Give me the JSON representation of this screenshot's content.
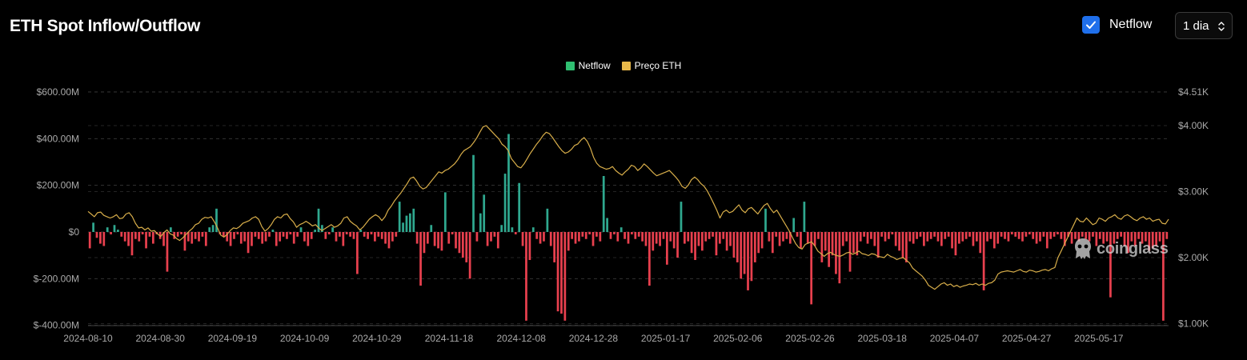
{
  "header": {
    "title": "ETH Spot Inflow/Outflow",
    "toggle_label": "Netflow",
    "toggle_checked": true,
    "interval_value": "1 dia"
  },
  "watermark": {
    "text": "coinglass"
  },
  "colors": {
    "positive": "#2fa88f",
    "negative": "#e8404e",
    "price": "#d8ae4a",
    "checkbox": "#1f6feb",
    "grid": "#333333"
  },
  "icons": {
    "check": "check-icon",
    "select": "chevron-updown-icon",
    "logo": "coinglass-logo-icon"
  },
  "chart_data": {
    "type": "bar",
    "title": "ETH Spot Inflow/Outflow",
    "legend": [
      "Netflow",
      "Preço ETH"
    ],
    "legend_position": "top-center",
    "grid": true,
    "x_tick_labels": [
      "2024-08-10",
      "2024-08-30",
      "2024-09-19",
      "2024-10-09",
      "2024-10-29",
      "2024-11-18",
      "2024-12-08",
      "2024-12-28",
      "2025-01-17",
      "2025-02-06",
      "2025-02-26",
      "2025-03-18",
      "2025-04-07",
      "2025-04-27",
      "2025-05-17"
    ],
    "y_left_tick_labels": [
      "$600.00M",
      "$400.00M",
      "$200.00M",
      "$0",
      "$-200.00M",
      "$-400.00M"
    ],
    "y_left_ticks": [
      600,
      400,
      200,
      0,
      -200,
      -400
    ],
    "y_left_unit": "USD millions",
    "y_left_range": [
      -400,
      600
    ],
    "y_right_tick_labels": [
      "$4.51K",
      "$4.00K",
      "$3.00K",
      "$2.00K",
      "$1.00K"
    ],
    "y_right_ticks": [
      4.51,
      4.0,
      3.0,
      2.0,
      1.0
    ],
    "y_right_unit": "USD thousands",
    "y_right_range": [
      1.0,
      4.51
    ],
    "start_date": "2024-08-10",
    "series": [
      {
        "name": "Netflow",
        "type": "bar",
        "values": [
          -70,
          40,
          -25,
          -50,
          -60,
          20,
          -10,
          30,
          10,
          -20,
          -40,
          -60,
          -100,
          -30,
          -40,
          -10,
          -70,
          -20,
          -50,
          -10,
          -30,
          -60,
          -170,
          20,
          -30,
          -20,
          -10,
          -80,
          -40,
          -50,
          -30,
          -40,
          -20,
          -60,
          20,
          30,
          100,
          -10,
          -20,
          -40,
          -60,
          -30,
          -10,
          -50,
          -40,
          -90,
          -60,
          -20,
          -30,
          -50,
          -40,
          -20,
          10,
          -60,
          -40,
          -20,
          -30,
          -10,
          -50,
          -20,
          20,
          -40,
          -60,
          -30,
          10,
          100,
          30,
          -30,
          -10,
          20,
          -40,
          -20,
          -60,
          -10,
          -20,
          -30,
          -180,
          10,
          -20,
          -30,
          -10,
          -40,
          -20,
          -30,
          -50,
          -70,
          -40,
          -20,
          130,
          40,
          70,
          80,
          100,
          -50,
          -230,
          -90,
          -50,
          30,
          -60,
          -70,
          -80,
          170,
          -50,
          -10,
          -70,
          -90,
          -110,
          -130,
          -200,
          330,
          -40,
          80,
          160,
          -60,
          -40,
          -20,
          -70,
          30,
          250,
          420,
          20,
          -10,
          210,
          -60,
          -380,
          -120,
          20,
          -30,
          -50,
          -40,
          100,
          -60,
          -130,
          -340,
          -350,
          -380,
          -80,
          -30,
          -50,
          -40,
          -20,
          -30,
          -10,
          -60,
          -20,
          -40,
          240,
          60,
          -30,
          -10,
          -40,
          20,
          -30,
          -50,
          -10,
          -30,
          -20,
          -40,
          -60,
          -230,
          -80,
          -50,
          -60,
          -30,
          -140,
          -40,
          -70,
          -110,
          130,
          -50,
          -40,
          -90,
          -120,
          -60,
          -80,
          -40,
          -30,
          -20,
          -100,
          -50,
          -30,
          -80,
          -60,
          -110,
          -130,
          -200,
          -180,
          -250,
          -210,
          -130,
          -90,
          -70,
          100,
          -40,
          -90,
          -20,
          -60,
          -40,
          -30,
          -50,
          60,
          -20,
          -70,
          130,
          -50,
          -310,
          -60,
          -30,
          -130,
          -80,
          -150,
          -100,
          -180,
          -220,
          -60,
          -40,
          -170,
          -90,
          -100,
          -40,
          -20,
          -50,
          -30,
          -60,
          -110,
          -20,
          -40,
          -30,
          -10,
          -60,
          -80,
          -110,
          -130,
          -40,
          -50,
          -30,
          -20,
          -60,
          -40,
          -30,
          -20,
          -40,
          -60,
          -30,
          -20,
          -70,
          -100,
          -50,
          -40,
          -30,
          -20,
          -60,
          -40,
          -90,
          -250,
          -40,
          -30,
          -70,
          -50,
          -20,
          -30,
          -40,
          -10,
          -20,
          -30,
          -40,
          -20,
          -10,
          -30,
          -50,
          -40,
          -20,
          -70,
          -30,
          -20,
          -10,
          -30,
          -60,
          -20,
          -50,
          -30,
          -40,
          -20,
          -30,
          -40,
          -20,
          -60,
          -30,
          -50,
          -40,
          -280,
          -50,
          -30,
          -20,
          -60,
          -90,
          -40,
          -60,
          -30,
          -50,
          -40,
          -80,
          -70,
          -60,
          -40,
          -380,
          -30
        ]
      },
      {
        "name": "Preço ETH",
        "type": "line",
        "values": [
          2.7,
          2.66,
          2.62,
          2.68,
          2.69,
          2.64,
          2.62,
          2.6,
          2.62,
          2.65,
          2.59,
          2.6,
          2.66,
          2.68,
          2.62,
          2.52,
          2.45,
          2.46,
          2.42,
          2.45,
          2.4,
          2.41,
          2.36,
          2.32,
          2.38,
          2.42,
          2.36,
          2.34,
          2.29,
          2.26,
          2.3,
          2.35,
          2.4,
          2.44,
          2.5,
          2.52,
          2.58,
          2.61,
          2.6,
          2.62,
          2.54,
          2.45,
          2.34,
          2.31,
          2.35,
          2.41,
          2.45,
          2.44,
          2.47,
          2.52,
          2.54,
          2.56,
          2.6,
          2.62,
          2.58,
          2.47,
          2.4,
          2.44,
          2.5,
          2.58,
          2.62,
          2.6,
          2.65,
          2.66,
          2.59,
          2.54,
          2.46,
          2.5,
          2.52,
          2.55,
          2.52,
          2.48,
          2.5,
          2.45,
          2.41,
          2.44,
          2.47,
          2.5,
          2.46,
          2.48,
          2.52,
          2.6,
          2.62,
          2.55,
          2.51,
          2.48,
          2.42,
          2.46,
          2.52,
          2.58,
          2.62,
          2.65,
          2.62,
          2.56,
          2.62,
          2.72,
          2.78,
          2.86,
          2.92,
          2.98,
          3.05,
          3.12,
          3.2,
          3.22,
          3.16,
          3.08,
          3.04,
          3.06,
          3.12,
          3.18,
          3.24,
          3.3,
          3.28,
          3.32,
          3.34,
          3.38,
          3.42,
          3.48,
          3.56,
          3.62,
          3.65,
          3.68,
          3.74,
          3.81,
          3.9,
          3.98,
          4.0,
          3.95,
          3.9,
          3.85,
          3.8,
          3.72,
          3.68,
          3.62,
          3.5,
          3.44,
          3.38,
          3.36,
          3.42,
          3.5,
          3.58,
          3.65,
          3.72,
          3.78,
          3.85,
          3.9,
          3.88,
          3.82,
          3.75,
          3.68,
          3.62,
          3.58,
          3.6,
          3.64,
          3.7,
          3.72,
          3.78,
          3.82,
          3.76,
          3.66,
          3.52,
          3.43,
          3.38,
          3.36,
          3.34,
          3.35,
          3.38,
          3.32,
          3.28,
          3.25,
          3.3,
          3.34,
          3.4,
          3.38,
          3.32,
          3.36,
          3.42,
          3.38,
          3.33,
          3.28,
          3.24,
          3.26,
          3.28,
          3.3,
          3.32,
          3.27,
          3.22,
          3.16,
          3.08,
          3.05,
          3.1,
          3.18,
          3.22,
          3.18,
          3.12,
          3.08,
          3.01,
          2.92,
          2.82,
          2.72,
          2.6,
          2.69,
          2.72,
          2.68,
          2.7,
          2.75,
          2.8,
          2.72,
          2.68,
          2.74,
          2.76,
          2.71,
          2.66,
          2.73,
          2.79,
          2.82,
          2.74,
          2.68,
          2.72,
          2.64,
          2.56,
          2.48,
          2.4,
          2.3,
          2.21,
          2.15,
          2.13,
          2.2,
          2.22,
          2.24,
          2.18,
          2.1,
          2.06,
          2.02,
          2.06,
          2.08,
          2.05,
          2.03,
          2.02,
          2.04,
          2.07,
          2.08,
          2.05,
          2.07,
          2.1,
          2.06,
          2.05,
          2.03,
          2.06,
          2.05,
          2.02,
          2.01,
          2.0,
          2.05,
          2.02,
          2.0,
          1.97,
          1.99,
          2.0,
          1.96,
          1.92,
          1.84,
          1.8,
          1.76,
          1.72,
          1.66,
          1.58,
          1.55,
          1.52,
          1.56,
          1.6,
          1.62,
          1.58,
          1.6,
          1.56,
          1.58,
          1.55,
          1.57,
          1.58,
          1.6,
          1.59,
          1.61,
          1.58,
          1.6,
          1.58,
          1.61,
          1.62,
          1.66,
          1.75,
          1.78,
          1.79,
          1.8,
          1.79,
          1.78,
          1.8,
          1.82,
          1.79,
          1.78,
          1.81,
          1.8,
          1.78,
          1.79,
          1.81,
          1.82,
          1.8,
          1.83,
          1.85,
          2.0,
          2.1,
          2.2,
          2.3,
          2.4,
          2.5,
          2.6,
          2.55,
          2.54,
          2.6,
          2.55,
          2.5,
          2.52,
          2.6,
          2.58,
          2.55,
          2.6,
          2.62,
          2.65,
          2.6,
          2.58,
          2.63,
          2.65,
          2.62,
          2.58,
          2.56,
          2.6,
          2.62,
          2.58,
          2.6,
          2.55,
          2.57,
          2.58,
          2.52,
          2.51,
          2.58
        ]
      }
    ]
  }
}
